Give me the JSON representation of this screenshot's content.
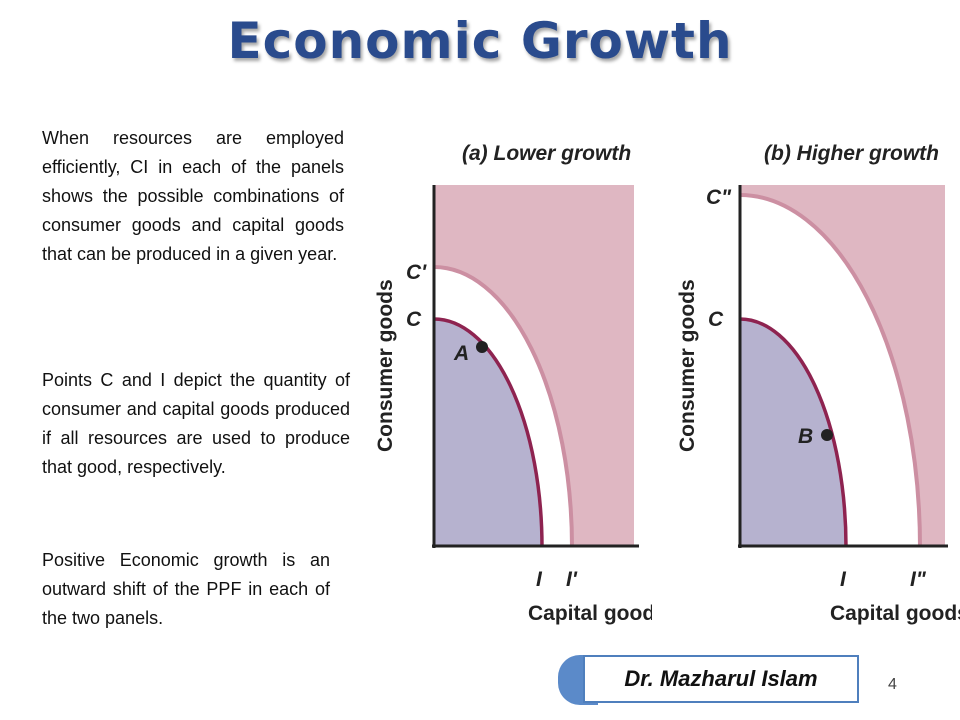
{
  "slide": {
    "title": "Economic Growth",
    "paragraphs": [
      "When resources are employed efficiently, CI in each of the panels shows the possible combinations of consumer goods and capital goods that can be produced in a given year.",
      "Points C and I depict the quantity of consumer and capital goods produced if all resources are used to produce that good, respectively.",
      "Positive Economic growth is an outward shift of the PPF in each of the two panels."
    ],
    "author": "Dr. Mazharul Islam",
    "page_number": "4"
  },
  "panels": [
    {
      "title": "(a) Lower growth",
      "ylabel": "Consumer goods",
      "xlabel": "Capital goods",
      "outer_y_label": "C'",
      "inner_y_label": "C",
      "inner_x_label": "I",
      "outer_x_label": "I'",
      "point_label": "A"
    },
    {
      "title": "(b) Higher growth",
      "ylabel": "Consumer goods",
      "xlabel": "Capital goods",
      "outer_y_label": "C\"",
      "inner_y_label": "C",
      "inner_x_label": "I",
      "outer_x_label": "I\"",
      "point_label": "B"
    }
  ],
  "colors": {
    "title": "#2a4b8d",
    "outer_region": "#dfb7c2",
    "inner_region": "#b6b2cf",
    "gap_region": "#ffffff",
    "inner_curve": "#8e2350",
    "outer_curve": "#cc8fa2",
    "author_accent": "#5b8ac9"
  }
}
